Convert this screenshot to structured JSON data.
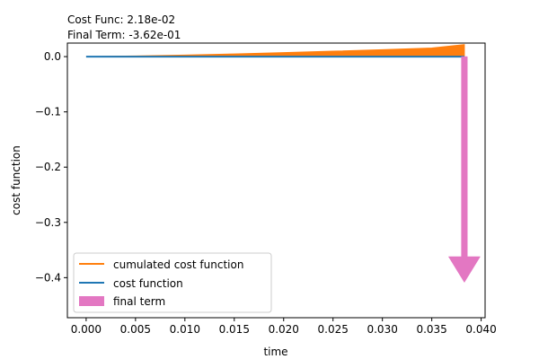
{
  "chart_data": {
    "type": "line",
    "title_lines": [
      "Cost Func: 2.18e-02",
      "Final Term: -3.62e-01"
    ],
    "xlabel": "time",
    "ylabel": "cost function",
    "xlim": [
      -0.0019,
      0.0404
    ],
    "ylim": [
      -0.4725,
      0.0245
    ],
    "x_ticks": [
      0.0,
      0.005,
      0.01,
      0.015,
      0.02,
      0.025,
      0.03,
      0.035,
      0.04
    ],
    "x_tick_labels": [
      "0.000",
      "0.005",
      "0.010",
      "0.015",
      "0.020",
      "0.025",
      "0.030",
      "0.035",
      "0.040"
    ],
    "y_ticks": [
      0.0,
      -0.1,
      -0.2,
      -0.3,
      -0.4
    ],
    "y_tick_labels": [
      "0.0",
      "−0.1",
      "−0.2",
      "−0.3",
      "−0.4"
    ],
    "grid": false,
    "legend_placement": "lower-left",
    "series": [
      {
        "name": "cumulated cost function",
        "color": "#ff7f0e",
        "kind": "filled-area",
        "x": [
          0.0,
          0.005,
          0.01,
          0.015,
          0.02,
          0.025,
          0.03,
          0.035,
          0.0383
        ],
        "upper": [
          0.0,
          0.0012,
          0.0028,
          0.0048,
          0.0072,
          0.0098,
          0.0125,
          0.0155,
          0.0218
        ],
        "lower": [
          0.0,
          0.0,
          0.0,
          0.0,
          0.0,
          0.0,
          0.0,
          0.0,
          0.0
        ]
      },
      {
        "name": "cost function",
        "color": "#1f77b4",
        "kind": "line",
        "x": [
          0.0,
          0.0383
        ],
        "y": [
          0.0,
          0.0
        ]
      },
      {
        "name": "final term",
        "color": "#e377c2",
        "kind": "arrow",
        "x": 0.0383,
        "y_start": 0.0,
        "y_end": -0.362,
        "head_length": 0.0465,
        "head_width": 0.0016,
        "shaft_width": 0.0006
      }
    ]
  }
}
